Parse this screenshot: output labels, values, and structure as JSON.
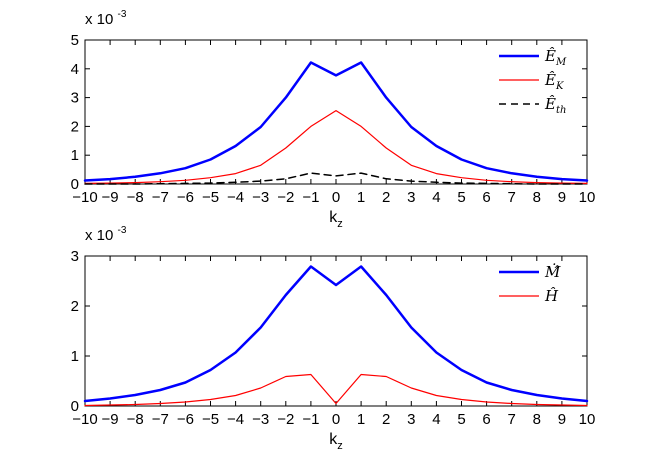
{
  "chart_data": [
    {
      "type": "line",
      "xlabel": "k",
      "xlabel_subscript": "z",
      "multiplier": {
        "base": "x 10",
        "exponent": "-3"
      },
      "xlim": [
        -10,
        10
      ],
      "ylim": [
        0,
        5
      ],
      "x_ticks": [
        -10,
        -9,
        -8,
        -7,
        -6,
        -5,
        -4,
        -3,
        -2,
        -1,
        0,
        1,
        2,
        3,
        4,
        5,
        6,
        7,
        8,
        9,
        10
      ],
      "y_ticks": [
        0,
        1,
        2,
        3,
        4,
        5
      ],
      "legend_position": "top-right",
      "x": [
        -10,
        -9,
        -8,
        -7,
        -6,
        -5,
        -4,
        -3,
        -2,
        -1,
        0,
        1,
        2,
        3,
        4,
        5,
        6,
        7,
        8,
        9,
        10
      ],
      "series": [
        {
          "name": "Ê",
          "subscript": "M",
          "color": "#0000ff",
          "style": "solid",
          "width": 2.5,
          "values": [
            0.12,
            0.17,
            0.25,
            0.37,
            0.55,
            0.85,
            1.32,
            1.98,
            3.0,
            4.22,
            3.77,
            4.22,
            3.0,
            1.98,
            1.32,
            0.85,
            0.55,
            0.37,
            0.25,
            0.17,
            0.12
          ]
        },
        {
          "name": "Ê",
          "subscript": "K",
          "color": "#ff0000",
          "style": "solid",
          "width": 1.2,
          "values": [
            0.02,
            0.03,
            0.05,
            0.08,
            0.13,
            0.22,
            0.36,
            0.65,
            1.25,
            2.0,
            2.55,
            2.0,
            1.25,
            0.65,
            0.36,
            0.22,
            0.13,
            0.08,
            0.05,
            0.03,
            0.02
          ]
        },
        {
          "name": "Ê",
          "subscript": "th",
          "color": "#000000",
          "style": "dashed",
          "width": 1.5,
          "values": [
            0.0,
            0.0,
            0.0,
            0.01,
            0.02,
            0.03,
            0.06,
            0.1,
            0.18,
            0.38,
            0.28,
            0.38,
            0.18,
            0.1,
            0.06,
            0.03,
            0.02,
            0.01,
            0.0,
            0.0,
            0.0
          ]
        }
      ]
    },
    {
      "type": "line",
      "xlabel": "k",
      "xlabel_subscript": "z",
      "multiplier": {
        "base": "x 10",
        "exponent": "-3"
      },
      "xlim": [
        -10,
        10
      ],
      "ylim": [
        0,
        3
      ],
      "x_ticks": [
        -10,
        -9,
        -8,
        -7,
        -6,
        -5,
        -4,
        -3,
        -2,
        -1,
        0,
        1,
        2,
        3,
        4,
        5,
        6,
        7,
        8,
        9,
        10
      ],
      "y_ticks": [
        0,
        1,
        2,
        3
      ],
      "legend_position": "top-right",
      "x": [
        -10,
        -9,
        -8,
        -7,
        -6,
        -5,
        -4,
        -3,
        -2,
        -1,
        0,
        1,
        2,
        3,
        4,
        5,
        6,
        7,
        8,
        9,
        10
      ],
      "series": [
        {
          "name": "Ṁ̂",
          "color": "#0000ff",
          "style": "solid",
          "width": 2.5,
          "values": [
            0.1,
            0.15,
            0.22,
            0.32,
            0.47,
            0.72,
            1.07,
            1.57,
            2.22,
            2.79,
            2.42,
            2.79,
            2.22,
            1.57,
            1.07,
            0.72,
            0.47,
            0.32,
            0.22,
            0.15,
            0.1
          ]
        },
        {
          "name": "Ĥ",
          "color": "#ff0000",
          "style": "solid",
          "width": 1.2,
          "values": [
            0.01,
            0.02,
            0.03,
            0.05,
            0.08,
            0.13,
            0.21,
            0.36,
            0.59,
            0.63,
            0.05,
            0.63,
            0.59,
            0.36,
            0.21,
            0.13,
            0.08,
            0.05,
            0.03,
            0.02,
            0.01
          ]
        }
      ]
    }
  ]
}
